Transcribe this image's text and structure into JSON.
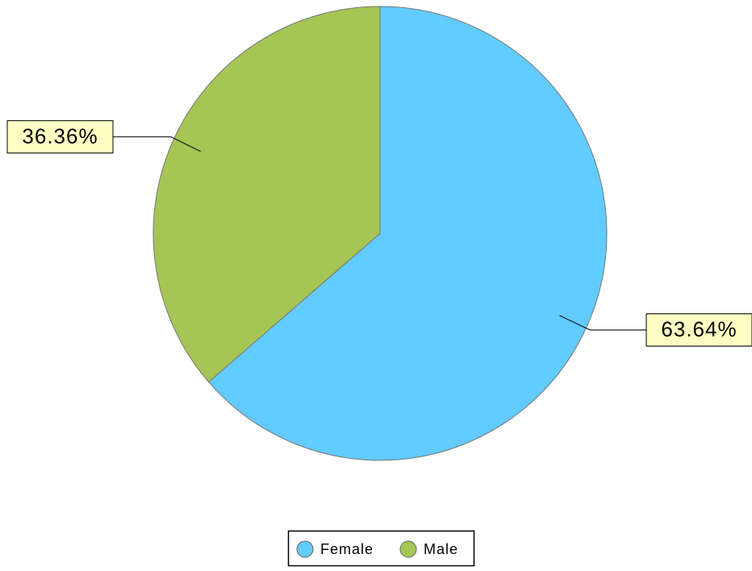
{
  "chart_data": {
    "type": "pie",
    "categories": [
      "Female",
      "Male"
    ],
    "values": [
      63.64,
      36.36
    ],
    "value_labels": [
      "63.64%",
      "36.36%"
    ],
    "colors": [
      "#62cbff",
      "#a5c554"
    ],
    "legend": "bottom"
  }
}
